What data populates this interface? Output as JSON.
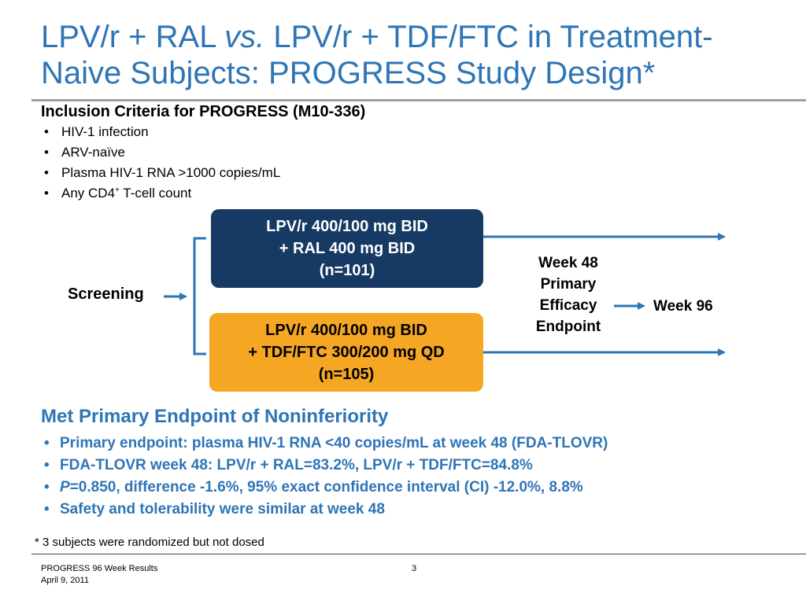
{
  "slide": {
    "title_part1": "LPV/r + RAL ",
    "title_italic": "vs.",
    "title_part2": " LPV/r + TDF/FTC in Treatment-Naive Subjects: PROGRESS Study Design*"
  },
  "inclusion": {
    "heading": "Inclusion Criteria for PROGRESS (M10-336)",
    "items": [
      "HIV-1 infection",
      "ARV-naïve",
      "Plasma HIV-1 RNA >1000 copies/mL"
    ],
    "cd4_text_before": "Any CD4",
    "cd4_superscript": "+",
    "cd4_text_after": " T-cell count"
  },
  "diagram": {
    "screening_label": "Screening",
    "arms": [
      {
        "lines": [
          "LPV/r 400/100 mg BID",
          "+ RAL 400 mg BID",
          "(n=101)"
        ],
        "color": "#163a63",
        "text_color": "#ffffff"
      },
      {
        "lines": [
          "LPV/r 400/100 mg BID",
          "+ TDF/FTC 300/200 mg QD",
          "(n=105)"
        ],
        "color": "#f5a623",
        "text_color": "#000000"
      }
    ],
    "week48_lines": [
      "Week 48",
      "Primary",
      "Efficacy",
      "Endpoint"
    ],
    "week96_label": "Week 96",
    "arrow_color": "#2e75b6",
    "bracket_color": "#2e75b6"
  },
  "endpoint": {
    "heading": "Met Primary Endpoint of Noninferiority",
    "items": [
      "Primary endpoint: plasma HIV-1 RNA <40 copies/mL at week 48 (FDA-TLOVR)",
      "FDA-TLOVR week 48: LPV/r + RAL=83.2%, LPV/r + TDF/FTC=84.8%"
    ],
    "p_italic": "P",
    "p_rest": "=0.850, difference -1.6%, 95% exact confidence interval (CI) -12.0%, 8.8%",
    "safety_item": "Safety and tolerability were similar at week 48"
  },
  "footnote": "* 3 subjects were randomized but not dosed",
  "footer": {
    "presentation": "PROGRESS 96 Week Results",
    "date": "April 9, 2011",
    "page_number": "3"
  },
  "colors": {
    "title_blue": "#2e75b6",
    "dark_navy": "#163a63",
    "orange": "#f5a623",
    "rule_gray": "#9aa3ad"
  }
}
